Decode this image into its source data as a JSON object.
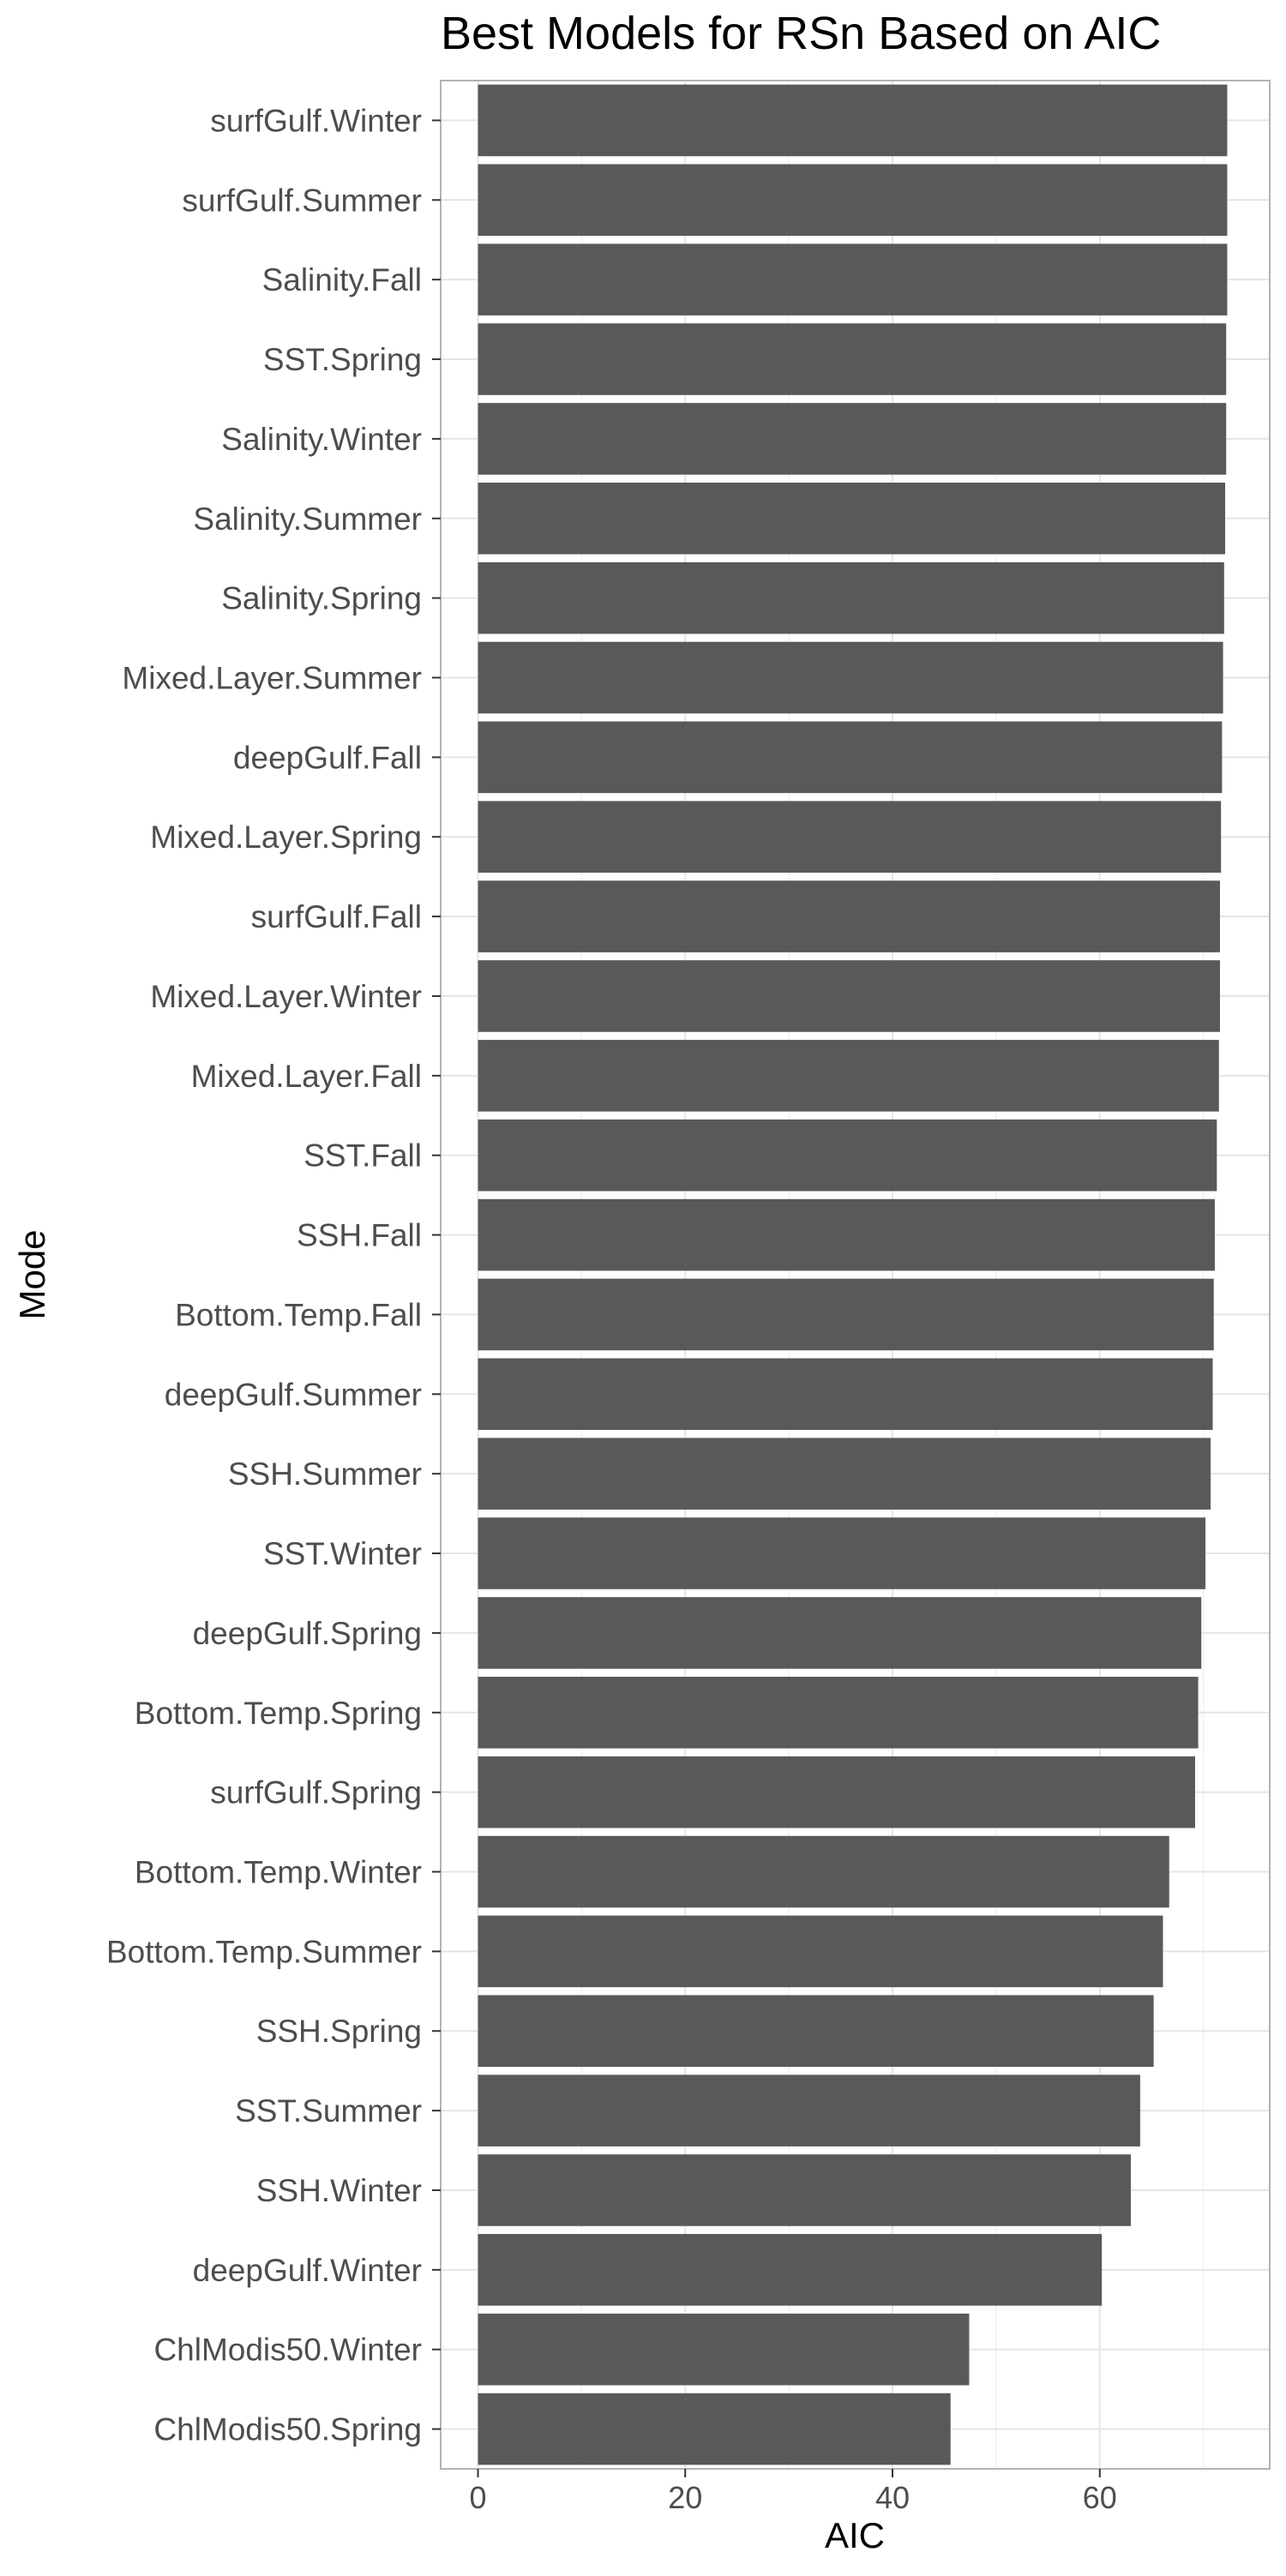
{
  "chart_data": {
    "type": "bar",
    "orientation": "horizontal",
    "title": "Best Models for RSn Based on AIC",
    "xlabel": "AIC",
    "ylabel": "Mode",
    "xlim": [
      -3.6,
      76.4
    ],
    "x_ticks": [
      0,
      20,
      40,
      60
    ],
    "grid": true,
    "theme": "light",
    "bar_color": "#595959",
    "categories": [
      "surfGulf.Winter",
      "surfGulf.Summer",
      "Salinity.Fall",
      "SST.Spring",
      "Salinity.Winter",
      "Salinity.Summer",
      "Salinity.Spring",
      "Mixed.Layer.Summer",
      "deepGulf.Fall",
      "Mixed.Layer.Spring",
      "surfGulf.Fall",
      "Mixed.Layer.Winter",
      "Mixed.Layer.Fall",
      "SST.Fall",
      "SSH.Fall",
      "Bottom.Temp.Fall",
      "deepGulf.Summer",
      "SSH.Summer",
      "SST.Winter",
      "deepGulf.Spring",
      "Bottom.Temp.Spring",
      "surfGulf.Spring",
      "Bottom.Temp.Winter",
      "Bottom.Temp.Summer",
      "SSH.Spring",
      "SST.Summer",
      "SSH.Winter",
      "deepGulf.Winter",
      "ChlModis50.Winter",
      "ChlModis50.Spring"
    ],
    "values": [
      72.3,
      72.3,
      72.3,
      72.2,
      72.2,
      72.1,
      72.0,
      71.9,
      71.8,
      71.7,
      71.6,
      71.6,
      71.5,
      71.3,
      71.1,
      71.0,
      70.9,
      70.7,
      70.2,
      69.8,
      69.5,
      69.2,
      66.7,
      66.1,
      65.2,
      63.9,
      63.0,
      60.2,
      47.4,
      45.6
    ]
  }
}
